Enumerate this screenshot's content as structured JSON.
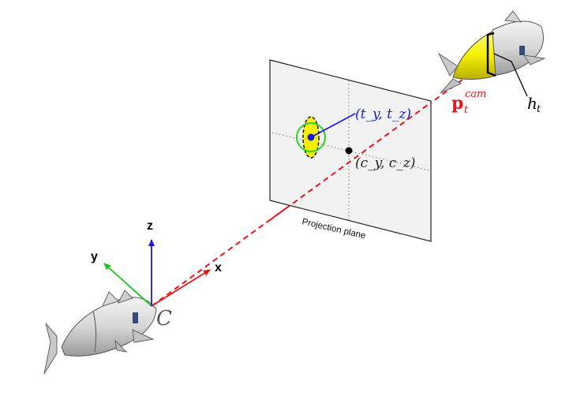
{
  "axes": {
    "x_label": "x",
    "y_label": "y",
    "z_label": "z",
    "origin_label": "C",
    "x_color": "#e8161a",
    "y_color": "#19c419",
    "z_color": "#1a1ae0"
  },
  "projection_plane": {
    "caption": "Projection plane",
    "principal_point_label": "(c_y, c_z)",
    "target_point_label": "(t_y, t_z)"
  },
  "target": {
    "position_label_main": "p",
    "position_label_sub": "t",
    "position_label_sup": "cam",
    "height_label_main": "h",
    "height_label_sub": "t",
    "body_color": "#f5ef00",
    "marker_color": "#2fd12f"
  },
  "icons": [
    "robotic-fish-camera-icon",
    "robotic-fish-target-icon"
  ]
}
